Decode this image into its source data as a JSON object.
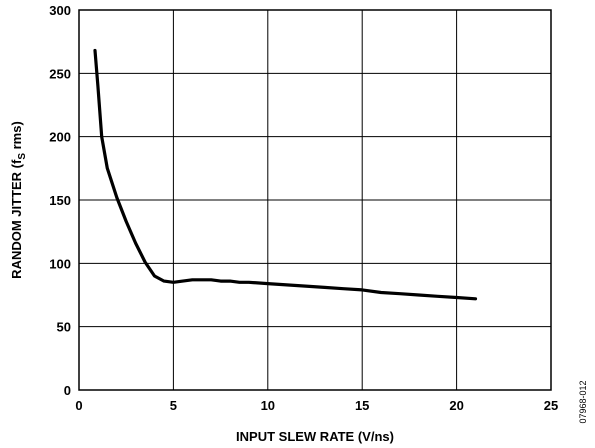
{
  "chart_data": {
    "type": "line",
    "title": "",
    "xlabel": "INPUT SLEW RATE (V/ns)",
    "ylabel": "RANDOM JITTER (fS rms)",
    "ylabel_parts": {
      "before": "RANDOM JITTER (f",
      "sub": "S",
      "after": " rms)"
    },
    "xlim": [
      0,
      25
    ],
    "ylim": [
      0,
      300
    ],
    "xticks": [
      0,
      5,
      10,
      15,
      20,
      25
    ],
    "yticks": [
      0,
      50,
      100,
      150,
      200,
      250,
      300
    ],
    "grid": true,
    "legend": "none",
    "line_color": "#000000",
    "series": [
      {
        "x": [
          0.85,
          1.0,
          1.2,
          1.5,
          2.0,
          2.5,
          3.0,
          3.5,
          4.0,
          4.5,
          5.0,
          5.5,
          6.0,
          6.5,
          7.0,
          7.5,
          8.0,
          8.5,
          9.0,
          10.0,
          11.0,
          12.0,
          13.0,
          14.0,
          15.0,
          16.0,
          17.0,
          18.0,
          19.0,
          20.0,
          21.0
        ],
        "y": [
          268,
          240,
          200,
          175,
          152,
          133,
          116,
          101,
          90,
          86,
          85,
          86,
          87,
          87,
          87,
          86,
          86,
          85,
          85,
          84,
          83,
          82,
          81,
          80,
          79,
          77,
          76,
          75,
          74,
          73,
          72
        ]
      }
    ],
    "figure_id": "07968-012"
  }
}
